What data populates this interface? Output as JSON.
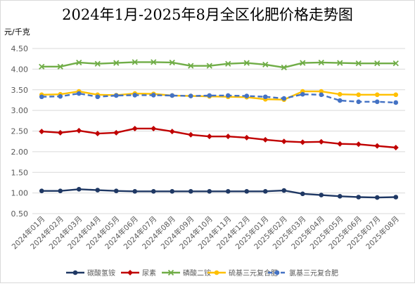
{
  "chart_data": {
    "type": "line",
    "title": "2024年1月-2025年8月全区化肥价格走势图",
    "unit": "元/千克",
    "xlabel": "",
    "ylabel": "元/千克",
    "ylim": [
      0.5,
      4.5
    ],
    "yticks": [
      "0.50",
      "1.00",
      "1.50",
      "2.00",
      "2.50",
      "3.00",
      "3.50",
      "4.00",
      "4.50"
    ],
    "grid": true,
    "legend_position": "bottom",
    "categories": [
      "2024年01月",
      "2024年02月",
      "2024年03月",
      "2024年04月",
      "2024年05月",
      "2024年06月",
      "2024年07月",
      "2024年08月",
      "2024年09月",
      "2024年10月",
      "2024年11月",
      "2024年12月",
      "2025年01月",
      "2025年02月",
      "2025年03月",
      "2025年04月",
      "2025年05月",
      "2025年06月",
      "2025年07月",
      "2025年08月"
    ],
    "series": [
      {
        "name": "碳酸氢铵",
        "color": "#1f3864",
        "marker": "circle",
        "dash": "solid",
        "values": [
          1.05,
          1.05,
          1.09,
          1.07,
          1.05,
          1.04,
          1.04,
          1.04,
          1.04,
          1.04,
          1.04,
          1.04,
          1.04,
          1.06,
          0.98,
          0.95,
          0.92,
          0.9,
          0.89,
          0.9
        ]
      },
      {
        "name": "尿素",
        "color": "#c00000",
        "marker": "diamond",
        "dash": "solid",
        "values": [
          2.49,
          2.46,
          2.51,
          2.44,
          2.46,
          2.56,
          2.56,
          2.49,
          2.41,
          2.37,
          2.37,
          2.34,
          2.29,
          2.25,
          2.23,
          2.24,
          2.19,
          2.18,
          2.14,
          2.1
        ]
      },
      {
        "name": "磷酸二铵",
        "color": "#70ad47",
        "marker": "x",
        "dash": "solid",
        "values": [
          4.06,
          4.06,
          4.16,
          4.13,
          4.15,
          4.17,
          4.17,
          4.16,
          4.08,
          4.08,
          4.13,
          4.15,
          4.11,
          4.04,
          4.15,
          4.16,
          4.15,
          4.14,
          4.14,
          4.14
        ]
      },
      {
        "name": "硫基三元复合肥",
        "color": "#ffc000",
        "marker": "circle",
        "dash": "solid",
        "values": [
          3.38,
          3.39,
          3.46,
          3.38,
          3.37,
          3.41,
          3.4,
          3.36,
          3.35,
          3.34,
          3.33,
          3.32,
          3.27,
          3.26,
          3.46,
          3.46,
          3.39,
          3.38,
          3.38,
          3.38
        ]
      },
      {
        "name": "氯基三元复合肥",
        "color": "#4472c4",
        "marker": "circle",
        "dash": "dashed",
        "values": [
          3.33,
          3.34,
          3.41,
          3.33,
          3.36,
          3.37,
          3.37,
          3.36,
          3.35,
          3.36,
          3.36,
          3.35,
          3.33,
          3.29,
          3.39,
          3.38,
          3.24,
          3.21,
          3.21,
          3.19
        ]
      }
    ]
  }
}
